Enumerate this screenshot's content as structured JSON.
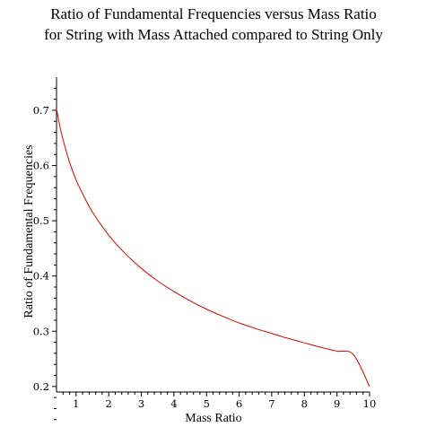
{
  "chart_data": {
    "type": "line",
    "title_lines": [
      "Ratio of Fundamental Frequencies versus Mass Ratio",
      "for String with Mass Attached compared to String Only"
    ],
    "xlabel": "Mass Ratio",
    "ylabel": "Ratio of Fundamental Frequencies",
    "xlim": [
      0.4,
      10
    ],
    "ylim": [
      0.19,
      0.76
    ],
    "x_ticks": [
      "1",
      "2",
      "3",
      "4",
      "5",
      "6",
      "7",
      "8",
      "9",
      "10"
    ],
    "y_ticks": [
      "0.2",
      "0.3",
      "0.4",
      "0.5",
      "0.6",
      "0.7"
    ],
    "grid": false,
    "legend": "none",
    "series": [
      {
        "color": "#e00000",
        "x": [
          0.4,
          0.5,
          0.6,
          0.8,
          1.0,
          1.2,
          1.5,
          2.0,
          2.5,
          3.0,
          3.5,
          4.0,
          4.5,
          5.0,
          5.5,
          6.0,
          6.5,
          7.0,
          7.5,
          8.0,
          8.5,
          9.0,
          9.5,
          10.0
        ],
        "y": [
          0.702,
          0.672,
          0.647,
          0.606,
          0.574,
          0.549,
          0.516,
          0.474,
          0.441,
          0.414,
          0.391,
          0.372,
          0.355,
          0.34,
          0.327,
          0.315,
          0.305,
          0.296,
          0.287,
          0.279,
          0.271,
          0.264,
          0.258,
          0.2
        ]
      }
    ]
  }
}
